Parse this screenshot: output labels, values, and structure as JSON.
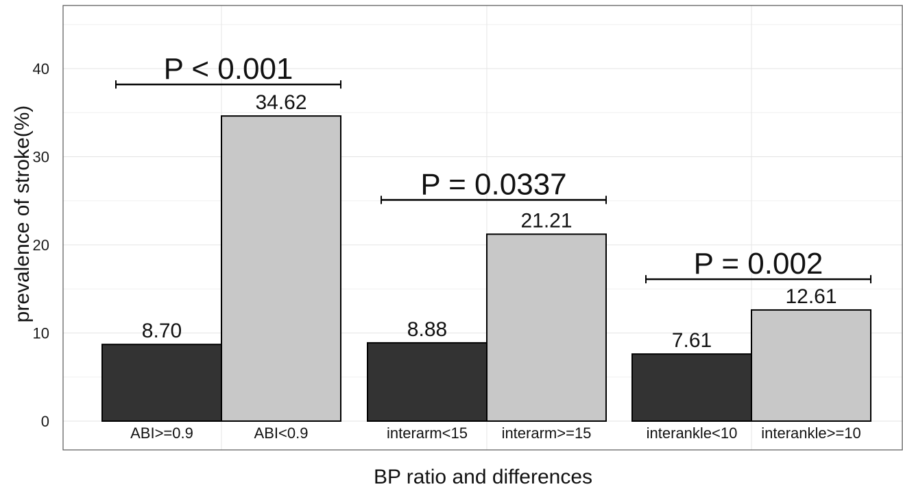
{
  "chart_data": {
    "type": "bar",
    "title": "",
    "xlabel": "BP ratio and differences",
    "ylabel": "prevalence of stroke(%)",
    "ylim": [
      0,
      46
    ],
    "yticks": [
      0,
      10,
      20,
      30,
      40
    ],
    "grid": true,
    "legend": "none",
    "groups": [
      {
        "bars": [
          {
            "category": "ABI>=0.9",
            "value": 8.7,
            "label": "8.70",
            "color": "#333333"
          },
          {
            "category": "ABI<0.9",
            "value": 34.62,
            "label": "34.62",
            "color": "#c8c8c8"
          }
        ],
        "p_value_label": "P < 0.001",
        "bracket_y": 38.2
      },
      {
        "bars": [
          {
            "category": "interarm<15",
            "value": 8.88,
            "label": "8.88",
            "color": "#333333"
          },
          {
            "category": "interarm>=15",
            "value": 21.21,
            "label": "21.21",
            "color": "#c8c8c8"
          }
        ],
        "p_value_label": "P = 0.0337",
        "bracket_y": 25.1
      },
      {
        "bars": [
          {
            "category": "interankle<10",
            "value": 7.61,
            "label": "7.61",
            "color": "#333333"
          },
          {
            "category": "interankle>=10",
            "value": 12.61,
            "label": "12.61",
            "color": "#c8c8c8"
          }
        ],
        "p_value_label": "P = 0.002",
        "bracket_y": 16.1
      }
    ]
  }
}
